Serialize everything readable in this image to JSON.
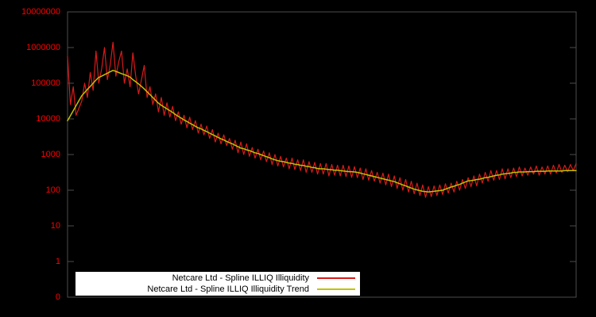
{
  "page": {
    "background": "#000000"
  },
  "colors": {
    "series": "#d91a1a",
    "trend": "#c2c200",
    "axis_label": "#ff0000",
    "frame": "#4d4d4d",
    "legend_bg": "#ffffff",
    "legend_text": "#000000"
  },
  "y_axis": {
    "tick_labels": [
      "10000000",
      "1000000",
      "100000",
      "10000",
      "1000",
      "100",
      "10",
      "1",
      "0"
    ],
    "scale": "log10"
  },
  "legend": {
    "entries": [
      {
        "label": "Netcare Ltd - Spline ILLIQ Illiquidity",
        "color": "#d91a1a"
      },
      {
        "label": "Netcare Ltd - Spline ILLIQ Illiquidity Trend",
        "color": "#c2c200"
      }
    ]
  },
  "chart_data": {
    "type": "line",
    "title": "",
    "xlabel": "",
    "ylabel": "",
    "grid": false,
    "legend_position": "bottom-center",
    "x_axis": {
      "tick_labels_visible": false
    },
    "y_axis": {
      "scale": "log",
      "tick_values": [
        10000000,
        1000000,
        100000,
        10000,
        1000,
        100,
        10,
        1,
        0
      ],
      "range_top": 10000000,
      "range_bottom": 0.1
    },
    "series": [
      {
        "name": "Netcare Ltd - Spline ILLIQ Illiquidity",
        "color": "#d91a1a",
        "style": "noisy-line",
        "values": [
          562000,
          25100,
          79400,
          12600,
          20000,
          31600,
          100000,
          39800,
          200000,
          63100,
          794000,
          100000,
          251000,
          1000000,
          126000,
          316000,
          1410000,
          158000,
          398000,
          794000,
          100000,
          251000,
          79400,
          708000,
          158000,
          50100,
          126000,
          316000,
          39800,
          79400,
          25100,
          50100,
          15800,
          39800,
          12600,
          28200,
          11200,
          22400,
          8910,
          15800,
          7080,
          12600,
          5620,
          11200,
          5010,
          8910,
          3980,
          7080,
          3550,
          6310,
          2820,
          5010,
          2240,
          3980,
          2000,
          3550,
          1780,
          2820,
          1410,
          2510,
          1120,
          2240,
          1000,
          2000,
          891,
          1580,
          794,
          1410,
          708,
          1260,
          631,
          1120,
          525,
          1000,
          479,
          891,
          447,
          794,
          398,
          794,
          380,
          708,
          355,
          708,
          316,
          631,
          316,
          603,
          282,
          562,
          282,
          562,
          251,
          525,
          263,
          501,
          251,
          501,
          240,
          479,
          229,
          457,
          224,
          417,
          200,
          398,
          191,
          355,
          178,
          316,
          158,
          302,
          141,
          282,
          126,
          251,
          112,
          224,
          100,
          200,
          89.1,
          178,
          79.4,
          158,
          70.8,
          141,
          63.1,
          126,
          66.1,
          132,
          70.8,
          141,
          75.9,
          151,
          83.2,
          158,
          89.1,
          178,
          100,
          200,
          112,
          224,
          126,
          251,
          132,
          282,
          158,
          316,
          178,
          355,
          191,
          355,
          200,
          398,
          209,
          398,
          224,
          417,
          240,
          447,
          251,
          417,
          263,
          447,
          282,
          479,
          263,
          447,
          282,
          479,
          282,
          501,
          302,
          525,
          316,
          501,
          331,
          525,
          355,
          562
        ]
      },
      {
        "name": "Netcare Ltd - Spline ILLIQ Illiquidity Trend",
        "color": "#c2c200",
        "style": "smooth-line",
        "values": [
          8910,
          12300,
          17000,
          23400,
          32400,
          44700,
          55000,
          67600,
          81300,
          100000,
          123000,
          145000,
          158000,
          174000,
          191000,
          209000,
          229000,
          214000,
          200000,
          186000,
          174000,
          162000,
          148000,
          126000,
          110000,
          95500,
          81300,
          69200,
          57500,
          47900,
          39800,
          33100,
          27500,
          24000,
          21400,
          19100,
          17000,
          15100,
          13200,
          11700,
          10500,
          9330,
          8510,
          7590,
          6920,
          6170,
          5620,
          5250,
          4790,
          4370,
          3980,
          3630,
          3310,
          3020,
          2750,
          2570,
          2340,
          2140,
          2000,
          1820,
          1660,
          1510,
          1450,
          1350,
          1290,
          1200,
          1120,
          1070,
          1000,
          933,
          871,
          813,
          759,
          708,
          676,
          646,
          631,
          603,
          575,
          562,
          537,
          525,
          501,
          490,
          468,
          457,
          437,
          427,
          407,
          398,
          398,
          389,
          380,
          372,
          363,
          363,
          355,
          347,
          339,
          331,
          331,
          324,
          316,
          302,
          288,
          275,
          263,
          251,
          240,
          229,
          219,
          209,
          200,
          191,
          182,
          174,
          162,
          151,
          141,
          132,
          123,
          115,
          107,
          102,
          97.7,
          93.3,
          91.2,
          89.1,
          91.2,
          93.3,
          95.5,
          97.7,
          100,
          107,
          115,
          123,
          129,
          138,
          145,
          158,
          170,
          182,
          186,
          191,
          200,
          204,
          214,
          224,
          229,
          240,
          251,
          263,
          269,
          282,
          288,
          295,
          302,
          316,
          316,
          324,
          324,
          324,
          331,
          331,
          331,
          339,
          339,
          339,
          339,
          347,
          347,
          347,
          347,
          347,
          347,
          355,
          355,
          355,
          355,
          355
        ]
      }
    ]
  }
}
